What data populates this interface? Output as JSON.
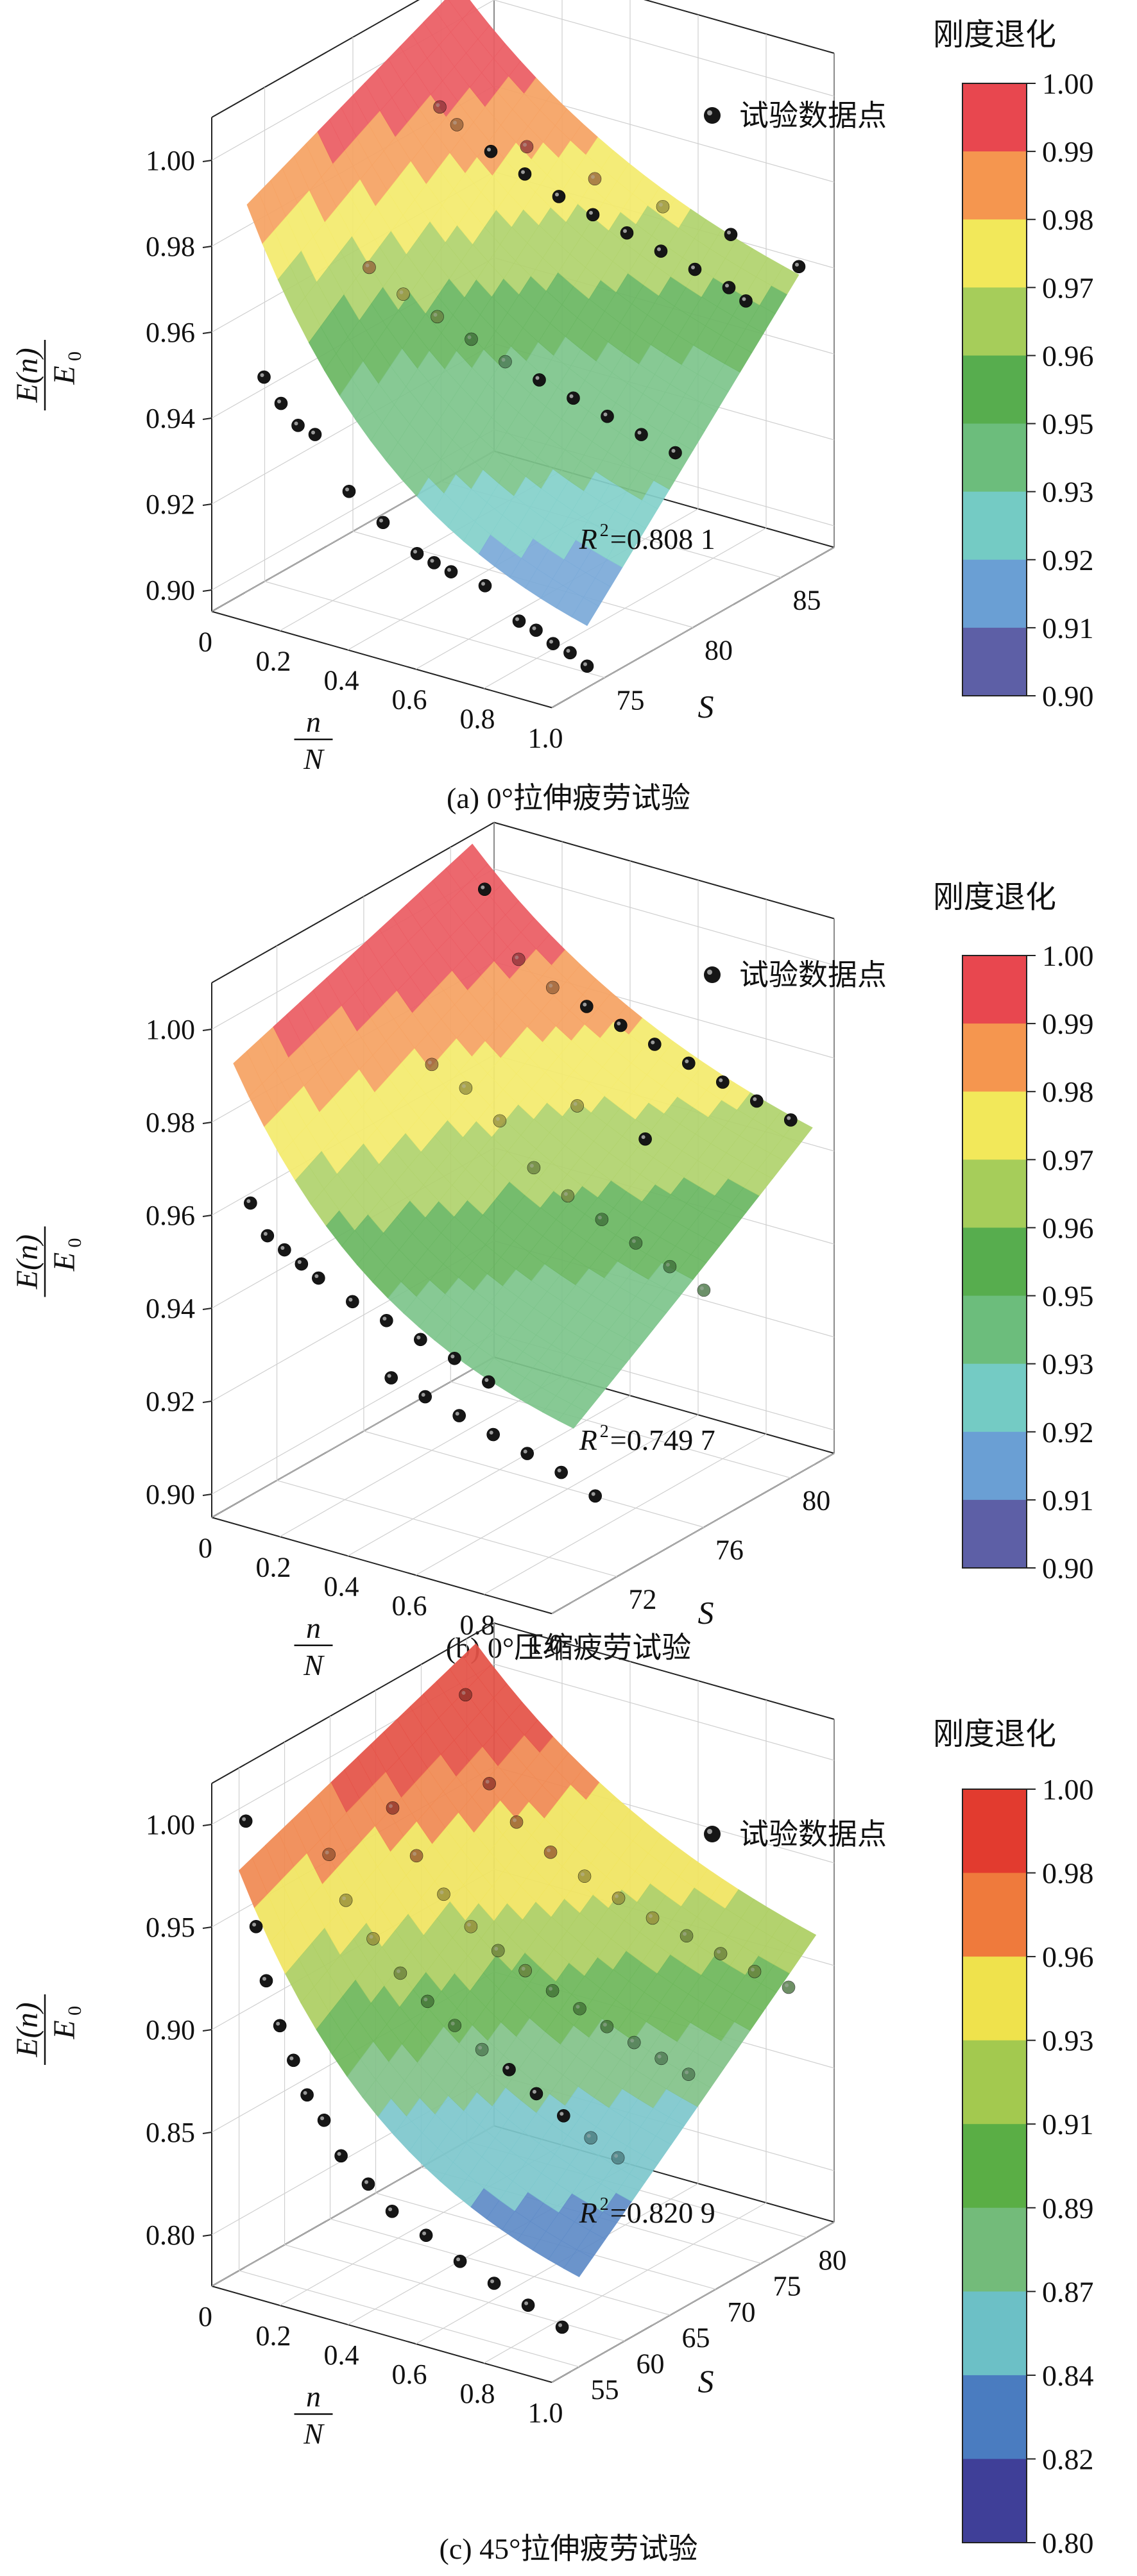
{
  "figure": {
    "colorbar_title": "刚度退化",
    "legend_label": "试验数据点",
    "y_label_num_base": "E",
    "y_label_num_arg": "n",
    "y_label_den_base": "E",
    "y_label_den_sub": "0",
    "x_label_num": "n",
    "x_label_den": "N",
    "s_label": "S",
    "r2_prefix": "R",
    "r2_sup": "2"
  },
  "chart_data": [
    {
      "type": "surface3d",
      "caption": "(a) 0°拉伸疲劳试验",
      "r2_value": "=0.808 1",
      "z_ticks": [
        "0.90",
        "0.92",
        "0.94",
        "0.96",
        "0.98",
        "1.00"
      ],
      "z_range": [
        0.895,
        1.01
      ],
      "x_ticks": [
        "0",
        "0.2",
        "0.4",
        "0.6",
        "0.8",
        "1.0"
      ],
      "s_ticks": [
        "75",
        "80",
        "85"
      ],
      "s_range": [
        72,
        88
      ],
      "colorbar_ticks": [
        "1.00",
        "0.99",
        "0.98",
        "0.97",
        "0.96",
        "0.95",
        "0.93",
        "0.92",
        "0.91",
        "0.90"
      ],
      "colorbar_colors": [
        "#e8474f",
        "#f5964f",
        "#f2e85a",
        "#a6cd5a",
        "#57ad4e",
        "#6cbd7c",
        "#74cbc4",
        "#6a9fd4",
        "#5d5fa6"
      ],
      "surface": {
        "s_min": 74,
        "s_max": 86,
        "z_lo_s_min": 0.9,
        "z_hi_s_min": 0.985,
        "z_lo_s_max": 0.949,
        "z_hi_s_max": 1.008
      },
      "points": [
        {
          "x": 0.05,
          "s": 74,
          "z": 0.946
        },
        {
          "x": 0.1,
          "s": 74,
          "z": 0.941
        },
        {
          "x": 0.15,
          "s": 74,
          "z": 0.937
        },
        {
          "x": 0.2,
          "s": 74,
          "z": 0.936
        },
        {
          "x": 0.3,
          "s": 74,
          "z": 0.925
        },
        {
          "x": 0.4,
          "s": 74,
          "z": 0.92
        },
        {
          "x": 0.5,
          "s": 74,
          "z": 0.915
        },
        {
          "x": 0.55,
          "s": 74,
          "z": 0.914
        },
        {
          "x": 0.6,
          "s": 74,
          "z": 0.913
        },
        {
          "x": 0.7,
          "s": 74,
          "z": 0.912
        },
        {
          "x": 0.8,
          "s": 74,
          "z": 0.906
        },
        {
          "x": 0.85,
          "s": 74,
          "z": 0.905
        },
        {
          "x": 0.9,
          "s": 74,
          "z": 0.903
        },
        {
          "x": 0.95,
          "s": 74,
          "z": 0.902
        },
        {
          "x": 1.0,
          "s": 74,
          "z": 0.9
        },
        {
          "x": 0.1,
          "s": 79,
          "z": 0.961
        },
        {
          "x": 0.2,
          "s": 79,
          "z": 0.957
        },
        {
          "x": 0.3,
          "s": 79,
          "z": 0.954
        },
        {
          "x": 0.4,
          "s": 79,
          "z": 0.951
        },
        {
          "x": 0.5,
          "s": 79,
          "z": 0.948
        },
        {
          "x": 0.6,
          "s": 79,
          "z": 0.946
        },
        {
          "x": 0.7,
          "s": 79,
          "z": 0.944
        },
        {
          "x": 0.8,
          "s": 79,
          "z": 0.942
        },
        {
          "x": 0.9,
          "s": 79,
          "z": 0.94
        },
        {
          "x": 1.0,
          "s": 79,
          "z": 0.938
        },
        {
          "x": 0.1,
          "s": 83,
          "z": 0.989
        },
        {
          "x": 0.15,
          "s": 83,
          "z": 0.986
        },
        {
          "x": 0.25,
          "s": 83,
          "z": 0.982
        },
        {
          "x": 0.35,
          "s": 83,
          "z": 0.979
        },
        {
          "x": 0.45,
          "s": 83,
          "z": 0.976
        },
        {
          "x": 0.55,
          "s": 83,
          "z": 0.974
        },
        {
          "x": 0.65,
          "s": 83,
          "z": 0.972
        },
        {
          "x": 0.75,
          "s": 83,
          "z": 0.97
        },
        {
          "x": 0.85,
          "s": 83,
          "z": 0.968
        },
        {
          "x": 0.95,
          "s": 83,
          "z": 0.966
        },
        {
          "x": 1.0,
          "s": 83,
          "z": 0.964
        },
        {
          "x": 0.2,
          "s": 86,
          "z": 0.975
        },
        {
          "x": 0.4,
          "s": 86,
          "z": 0.972
        },
        {
          "x": 0.6,
          "s": 86,
          "z": 0.97
        },
        {
          "x": 0.8,
          "s": 86,
          "z": 0.968
        },
        {
          "x": 1.0,
          "s": 86,
          "z": 0.965
        }
      ]
    },
    {
      "type": "surface3d",
      "caption": "(b) 0°压缩疲劳试验",
      "r2_value": "=0.749 7",
      "z_ticks": [
        "0.90",
        "0.92",
        "0.94",
        "0.96",
        "0.98",
        "1.00"
      ],
      "z_range": [
        0.895,
        1.01
      ],
      "x_ticks": [
        "0",
        "0.2",
        "0.4",
        "0.6",
        "0.8",
        "1.0"
      ],
      "s_ticks": [
        "72",
        "76",
        "80"
      ],
      "s_range": [
        69,
        82
      ],
      "colorbar_ticks": [
        "1.00",
        "0.99",
        "0.98",
        "0.97",
        "0.96",
        "0.95",
        "0.93",
        "0.92",
        "0.91",
        "0.90"
      ],
      "colorbar_colors": [
        "#e8474f",
        "#f5964f",
        "#f2e85a",
        "#a6cd5a",
        "#57ad4e",
        "#6cbd7c",
        "#74cbc4",
        "#6a9fd4",
        "#5d5fa6"
      ],
      "surface": {
        "s_min": 70,
        "s_max": 81,
        "z_lo_s_min": 0.925,
        "z_hi_s_min": 0.99,
        "z_lo_s_max": 0.955,
        "z_hi_s_max": 1.008
      },
      "points": [
        {
          "x": 0.05,
          "s": 70,
          "z": 0.961
        },
        {
          "x": 0.1,
          "s": 70,
          "z": 0.955
        },
        {
          "x": 0.15,
          "s": 70,
          "z": 0.953
        },
        {
          "x": 0.2,
          "s": 70,
          "z": 0.951
        },
        {
          "x": 0.25,
          "s": 70,
          "z": 0.949
        },
        {
          "x": 0.35,
          "s": 70,
          "z": 0.946
        },
        {
          "x": 0.45,
          "s": 70,
          "z": 0.944
        },
        {
          "x": 0.55,
          "s": 70,
          "z": 0.942
        },
        {
          "x": 0.65,
          "s": 70,
          "z": 0.94
        },
        {
          "x": 0.75,
          "s": 70,
          "z": 0.937
        },
        {
          "x": 0.4,
          "s": 71,
          "z": 0.928
        },
        {
          "x": 0.5,
          "s": 71,
          "z": 0.926
        },
        {
          "x": 0.6,
          "s": 71,
          "z": 0.924
        },
        {
          "x": 0.7,
          "s": 71,
          "z": 0.922
        },
        {
          "x": 0.8,
          "s": 71,
          "z": 0.92
        },
        {
          "x": 0.9,
          "s": 71,
          "z": 0.918
        },
        {
          "x": 1.0,
          "s": 71,
          "z": 0.915
        },
        {
          "x": 0.2,
          "s": 76,
          "z": 0.978
        },
        {
          "x": 0.3,
          "s": 76,
          "z": 0.975
        },
        {
          "x": 0.4,
          "s": 76,
          "z": 0.97
        },
        {
          "x": 0.5,
          "s": 76,
          "z": 0.962
        },
        {
          "x": 0.6,
          "s": 76,
          "z": 0.958
        },
        {
          "x": 0.7,
          "s": 76,
          "z": 0.955
        },
        {
          "x": 0.8,
          "s": 76,
          "z": 0.952
        },
        {
          "x": 0.9,
          "s": 76,
          "z": 0.949
        },
        {
          "x": 1.0,
          "s": 76,
          "z": 0.946
        },
        {
          "x": 0.1,
          "s": 80,
          "z": 1.003
        },
        {
          "x": 0.2,
          "s": 80,
          "z": 0.99
        },
        {
          "x": 0.3,
          "s": 80,
          "z": 0.986
        },
        {
          "x": 0.4,
          "s": 80,
          "z": 0.984
        },
        {
          "x": 0.5,
          "s": 80,
          "z": 0.982
        },
        {
          "x": 0.6,
          "s": 80,
          "z": 0.98
        },
        {
          "x": 0.7,
          "s": 80,
          "z": 0.978
        },
        {
          "x": 0.8,
          "s": 80,
          "z": 0.976
        },
        {
          "x": 0.9,
          "s": 80,
          "z": 0.974
        },
        {
          "x": 1.0,
          "s": 80,
          "z": 0.972
        },
        {
          "x": 0.5,
          "s": 78,
          "z": 0.97
        },
        {
          "x": 0.7,
          "s": 78,
          "z": 0.967
        }
      ]
    },
    {
      "type": "surface3d",
      "caption": "(c) 45°拉伸疲劳试验",
      "r2_value": "=0.820 9",
      "z_ticks": [
        "0.80",
        "0.85",
        "0.90",
        "0.95",
        "1.00"
      ],
      "z_range": [
        0.775,
        1.02
      ],
      "x_ticks": [
        "0",
        "0.2",
        "0.4",
        "0.6",
        "0.8",
        "1.0"
      ],
      "s_ticks": [
        "55",
        "60",
        "65",
        "70",
        "75",
        "80"
      ],
      "s_range": [
        52,
        83
      ],
      "colorbar_ticks": [
        "1.00",
        "0.98",
        "0.96",
        "0.93",
        "0.91",
        "0.89",
        "0.87",
        "0.84",
        "0.82",
        "0.80"
      ],
      "colorbar_colors": [
        "#e23b2f",
        "#ef7a3c",
        "#efe24c",
        "#a3c94f",
        "#5aae45",
        "#73bb7a",
        "#6cc0c6",
        "#4a7cc0",
        "#3f3f98"
      ],
      "surface": {
        "s_min": 55,
        "s_max": 81,
        "z_lo_s_min": 0.8,
        "z_hi_s_min": 0.97,
        "z_lo_s_max": 0.89,
        "z_hi_s_max": 1.015
      },
      "points": [
        {
          "x": 0.02,
          "s": 55,
          "z": 0.995
        },
        {
          "x": 0.05,
          "s": 55,
          "z": 0.945
        },
        {
          "x": 0.08,
          "s": 55,
          "z": 0.92
        },
        {
          "x": 0.12,
          "s": 55,
          "z": 0.9
        },
        {
          "x": 0.16,
          "s": 55,
          "z": 0.885
        },
        {
          "x": 0.2,
          "s": 55,
          "z": 0.87
        },
        {
          "x": 0.25,
          "s": 55,
          "z": 0.86
        },
        {
          "x": 0.3,
          "s": 55,
          "z": 0.845
        },
        {
          "x": 0.38,
          "s": 55,
          "z": 0.835
        },
        {
          "x": 0.45,
          "s": 55,
          "z": 0.825
        },
        {
          "x": 0.55,
          "s": 55,
          "z": 0.818
        },
        {
          "x": 0.65,
          "s": 55,
          "z": 0.81
        },
        {
          "x": 0.75,
          "s": 55,
          "z": 0.804
        },
        {
          "x": 0.85,
          "s": 55,
          "z": 0.798
        },
        {
          "x": 0.95,
          "s": 55,
          "z": 0.792
        },
        {
          "x": 0.05,
          "s": 63,
          "z": 0.96
        },
        {
          "x": 0.1,
          "s": 63,
          "z": 0.94
        },
        {
          "x": 0.18,
          "s": 63,
          "z": 0.925
        },
        {
          "x": 0.26,
          "s": 63,
          "z": 0.912
        },
        {
          "x": 0.34,
          "s": 63,
          "z": 0.902
        },
        {
          "x": 0.42,
          "s": 63,
          "z": 0.894
        },
        {
          "x": 0.5,
          "s": 63,
          "z": 0.886
        },
        {
          "x": 0.58,
          "s": 63,
          "z": 0.88
        },
        {
          "x": 0.66,
          "s": 63,
          "z": 0.872
        },
        {
          "x": 0.74,
          "s": 63,
          "z": 0.865
        },
        {
          "x": 0.82,
          "s": 63,
          "z": 0.858
        },
        {
          "x": 0.9,
          "s": 63,
          "z": 0.852
        },
        {
          "x": 0.05,
          "s": 70,
          "z": 0.965
        },
        {
          "x": 0.12,
          "s": 70,
          "z": 0.945
        },
        {
          "x": 0.2,
          "s": 70,
          "z": 0.93
        },
        {
          "x": 0.28,
          "s": 70,
          "z": 0.918
        },
        {
          "x": 0.36,
          "s": 70,
          "z": 0.91
        },
        {
          "x": 0.44,
          "s": 70,
          "z": 0.904
        },
        {
          "x": 0.52,
          "s": 70,
          "z": 0.898
        },
        {
          "x": 0.6,
          "s": 70,
          "z": 0.893
        },
        {
          "x": 0.68,
          "s": 70,
          "z": 0.888
        },
        {
          "x": 0.76,
          "s": 70,
          "z": 0.884
        },
        {
          "x": 0.84,
          "s": 70,
          "z": 0.88
        },
        {
          "x": 0.92,
          "s": 70,
          "z": 0.876
        },
        {
          "x": 0.05,
          "s": 78,
          "z": 1.0
        },
        {
          "x": 0.12,
          "s": 78,
          "z": 0.96
        },
        {
          "x": 0.2,
          "s": 78,
          "z": 0.945
        },
        {
          "x": 0.3,
          "s": 78,
          "z": 0.935
        },
        {
          "x": 0.4,
          "s": 78,
          "z": 0.928
        },
        {
          "x": 0.5,
          "s": 78,
          "z": 0.922
        },
        {
          "x": 0.6,
          "s": 78,
          "z": 0.917
        },
        {
          "x": 0.7,
          "s": 78,
          "z": 0.913
        },
        {
          "x": 0.8,
          "s": 78,
          "z": 0.909
        },
        {
          "x": 0.9,
          "s": 78,
          "z": 0.905
        },
        {
          "x": 1.0,
          "s": 78,
          "z": 0.902
        }
      ]
    }
  ]
}
